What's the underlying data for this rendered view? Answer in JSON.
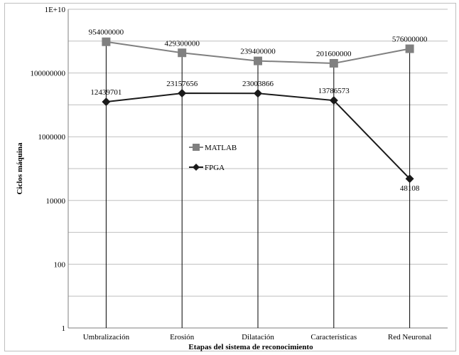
{
  "chart_data": {
    "type": "line",
    "title": "",
    "xlabel": "Etapas del sistema de reconocimiento",
    "ylabel": "Ciclos máquina",
    "yscale": "log",
    "ylim": [
      1,
      10000000000
    ],
    "yticks": [
      {
        "value": 1,
        "label": "1"
      },
      {
        "value": 100,
        "label": "100"
      },
      {
        "value": 10000,
        "label": "10000"
      },
      {
        "value": 1000000,
        "label": "1000000"
      },
      {
        "value": 100000000,
        "label": "100000000"
      },
      {
        "value": 10000000000,
        "label": "1E+10"
      }
    ],
    "categories": [
      "Umbralización",
      "Erosión",
      "Dilatación",
      "Características",
      "Red Neuronal"
    ],
    "series": [
      {
        "name": "MATLAB",
        "color": "#808080",
        "marker": "square",
        "values": [
          954000000,
          429300000,
          239400000,
          201600000,
          576000000
        ],
        "labels": [
          "954000000",
          "429300000",
          "239400000",
          "201600000",
          "576000000"
        ]
      },
      {
        "name": "FPGA",
        "color": "#1a1a1a",
        "marker": "diamond",
        "values": [
          12439701,
          23157656,
          23003866,
          13786573,
          48108
        ],
        "labels": [
          "12439701",
          "23157656",
          "23003866",
          "13786573",
          "48108"
        ]
      }
    ],
    "grid": true,
    "drop_lines": true,
    "legend_position": "center-left"
  }
}
